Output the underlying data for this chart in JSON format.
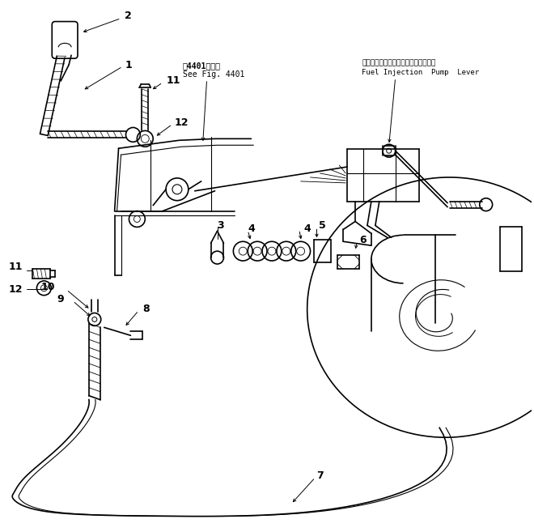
{
  "bg_color": "#ffffff",
  "line_color": "#000000",
  "fig_width": 6.6,
  "fig_height": 6.57,
  "dpi": 100,
  "japanese_label": "フェルインジェクションポンプレバー",
  "english_label": "Fuel Injection  Pump  Lever",
  "see_fig_jp": "笥4401回参照",
  "see_fig_en": "See Fig. 4401"
}
